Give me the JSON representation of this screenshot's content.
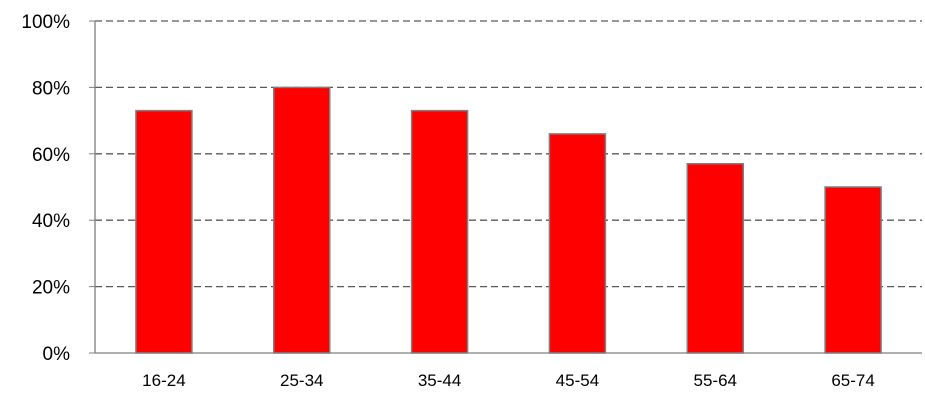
{
  "chart_data": {
    "type": "bar",
    "title": "",
    "xlabel": "",
    "ylabel": "",
    "categories": [
      "16-24",
      "25-34",
      "35-44",
      "45-54",
      "55-64",
      "65-74"
    ],
    "values": [
      73,
      80,
      73,
      66,
      57,
      50
    ],
    "ylim": [
      0,
      100
    ],
    "y_ticks": [
      0,
      20,
      40,
      60,
      80,
      100
    ],
    "y_tick_labels": [
      "0%",
      "20%",
      "40%",
      "60%",
      "80%",
      "100%"
    ],
    "grid": true,
    "grid_style": "dashed",
    "legend": "none",
    "colors": {
      "bar_fill": "#ff0000",
      "bar_stroke": "#7f7f7f",
      "grid": "#595959",
      "axis": "#7f7f7f"
    }
  }
}
